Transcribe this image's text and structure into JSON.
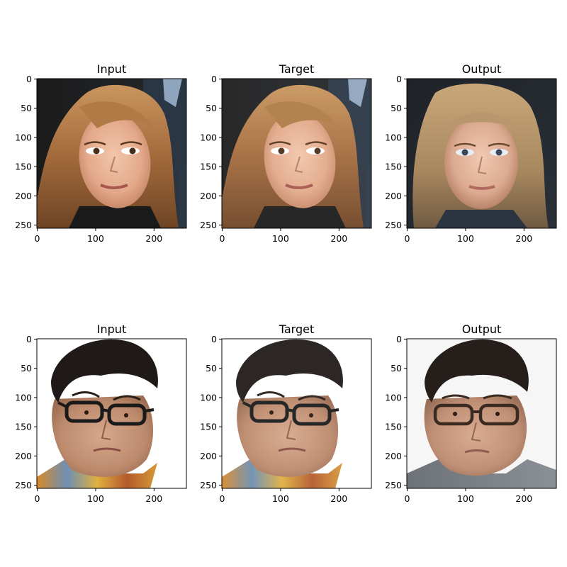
{
  "figure": {
    "axis_ticks": [
      0,
      50,
      100,
      150,
      200,
      250
    ],
    "x_ticks": [
      0,
      100,
      200
    ],
    "image_extent": [
      0,
      256
    ],
    "rows": [
      {
        "panels": [
          {
            "title": "Input",
            "image": "photo-woman-input"
          },
          {
            "title": "Target",
            "image": "photo-woman-target"
          },
          {
            "title": "Output",
            "image": "photo-woman-output"
          }
        ]
      },
      {
        "panels": [
          {
            "title": "Input",
            "image": "photo-man-glasses-input"
          },
          {
            "title": "Target",
            "image": "photo-man-glasses-target"
          },
          {
            "title": "Output",
            "image": "photo-man-glasses-output"
          }
        ]
      }
    ]
  }
}
